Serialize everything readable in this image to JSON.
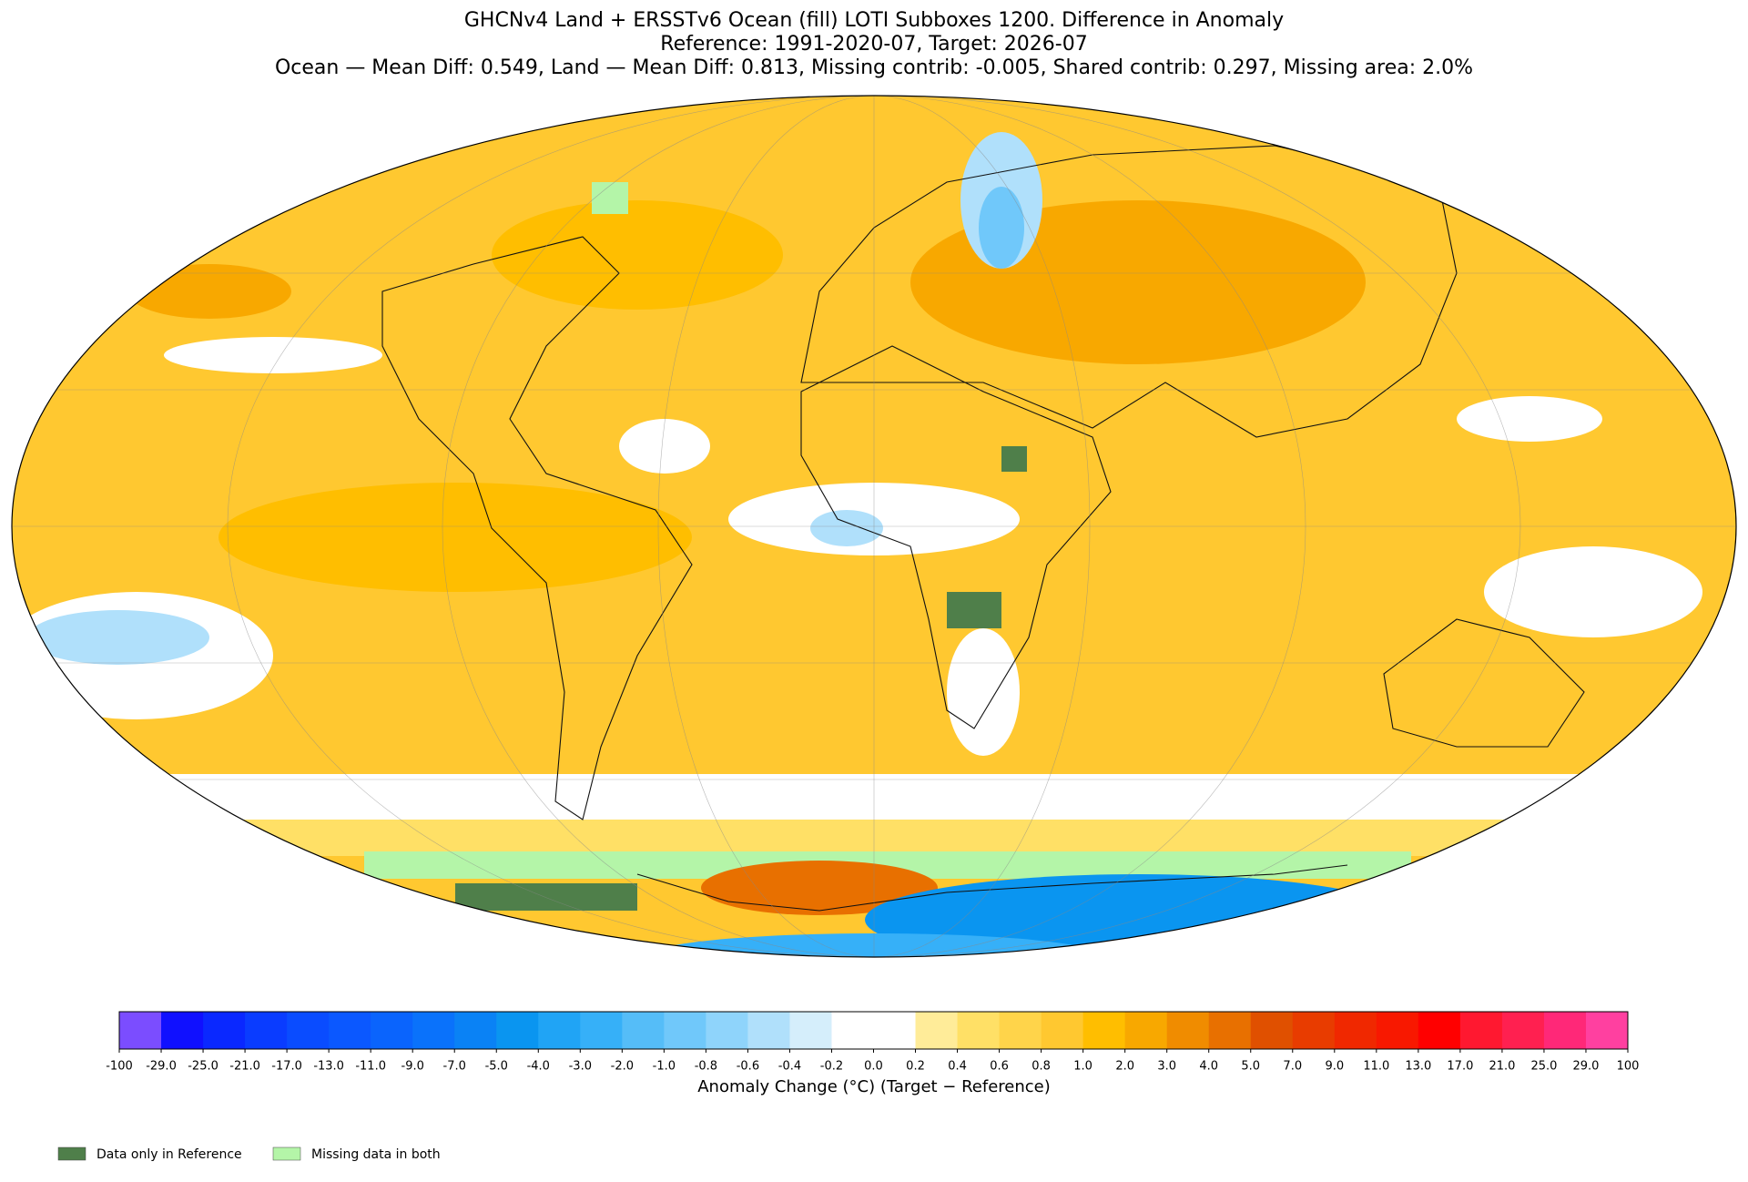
{
  "title": [
    "GHCNv4 Land + ERSSTv6 Ocean (fill) LOTI Subboxes 1200. Difference in Anomaly",
    "Reference: 1991-2020-07, Target: 2026-07",
    "Ocean — Mean Diff: 0.549, Land — Mean Diff: 0.813, Missing contrib: -0.005, Shared contrib: 0.297, Missing area: 2.0%"
  ],
  "colorbar": {
    "label": "Anomaly Change (°C) (Target − Reference)",
    "ticks": [
      -100,
      {
        "value": -29,
        "label": "-29.0"
      },
      {
        "value": -25,
        "label": "-25.0"
      },
      {
        "value": -21,
        "label": "-21.0"
      },
      {
        "value": -17,
        "label": "-17.0"
      },
      {
        "value": -13,
        "label": "-13.0"
      },
      {
        "value": -11,
        "label": "-11.0"
      },
      {
        "value": -9,
        "label": "-9.0"
      },
      {
        "value": -7,
        "label": "-7.0"
      },
      {
        "value": -5,
        "label": "-5.0"
      },
      {
        "value": -4,
        "label": "-4.0"
      },
      {
        "value": -3,
        "label": "-3.0"
      },
      {
        "value": -2,
        "label": "-2.0"
      },
      {
        "value": -1,
        "label": "-1.0"
      },
      -0.8,
      -0.6,
      -0.4,
      -0.2,
      {
        "value": 0,
        "label": "0.0"
      },
      0.2,
      0.4,
      0.6,
      0.8,
      {
        "value": 1,
        "label": "1.0"
      },
      {
        "value": 2,
        "label": "2.0"
      },
      {
        "value": 3,
        "label": "3.0"
      },
      {
        "value": 4,
        "label": "4.0"
      },
      {
        "value": 5,
        "label": "5.0"
      },
      {
        "value": 7,
        "label": "7.0"
      },
      {
        "value": 9,
        "label": "9.0"
      },
      {
        "value": 11,
        "label": "11.0"
      },
      {
        "value": 13,
        "label": "13.0"
      },
      {
        "value": 17,
        "label": "17.0"
      },
      {
        "value": 21,
        "label": "21.0"
      },
      {
        "value": 25,
        "label": "25.0"
      },
      {
        "value": 29,
        "label": "29.0"
      },
      100
    ],
    "colors": [
      "#7b4dff",
      "#1010ff",
      "#0a28ff",
      "#0a3cff",
      "#0a4cff",
      "#0b58ff",
      "#0a64fd",
      "#0a72fb",
      "#0a82f5",
      "#0a95f0",
      "#20a4f5",
      "#36b0f8",
      "#55bdf8",
      "#70c8fa",
      "#8fd4fb",
      "#b0e0fb",
      "#d5eefb",
      "#ffffff",
      "#ffffff",
      "#ffec99",
      "#ffe066",
      "#ffd44a",
      "#ffc830",
      "#ffbe00",
      "#f8a800",
      "#f08c00",
      "#e87000",
      "#e05000",
      "#e83c00",
      "#f02800",
      "#f81800",
      "#ff0000",
      "#ff1830",
      "#ff2050",
      "#ff2878",
      "#ff40a0"
    ]
  },
  "legend": [
    {
      "label": "Data only in Reference",
      "color": "#4f7f4a"
    },
    {
      "label": "Missing data in both",
      "color": "#b4f5a8"
    }
  ]
}
